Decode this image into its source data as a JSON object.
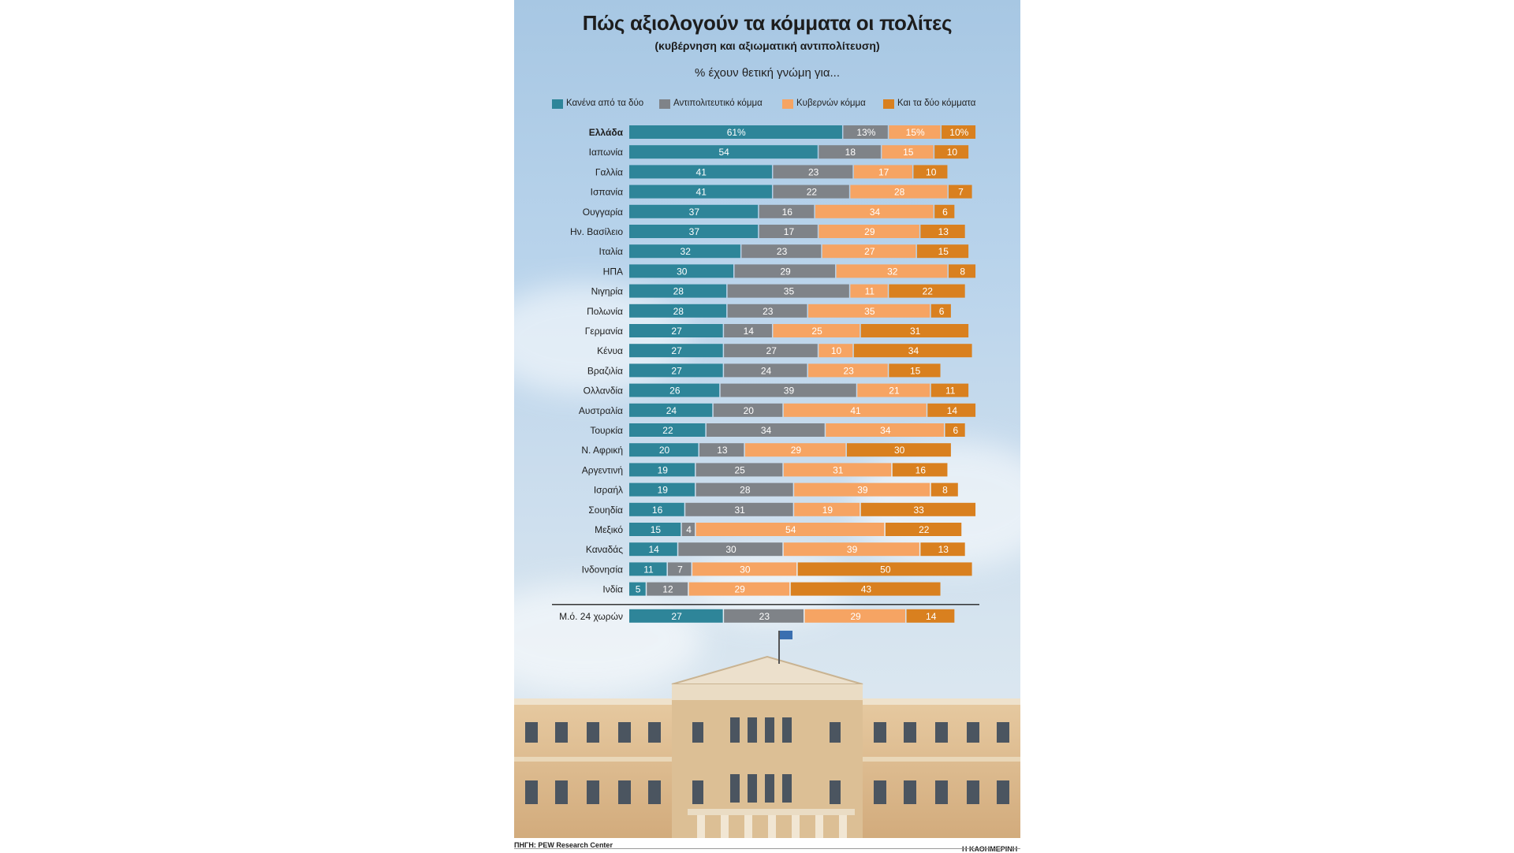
{
  "title": "Πώς αξιολογούν τα κόμματα οι πολίτες",
  "subtitle": "(κυβέρνηση και αξιωματική αντιπολίτευση)",
  "caption": "% έχουν θετική γνώμη για...",
  "source": "ΠΗΓΗ: PEW Research Center",
  "brand": "Η ΚΑΘΗΜΕΡΙΝΗ",
  "colors": {
    "neither": "#2e8599",
    "opposition": "#7f8388",
    "government": "#f6a463",
    "both": "#d9801f"
  },
  "chart_data": {
    "type": "bar",
    "orientation": "horizontal",
    "stacked": true,
    "categories": [
      "Ελλάδα",
      "Ιαπωνία",
      "Γαλλία",
      "Ισπανία",
      "Ουγγαρία",
      "Ην. Βασίλειο",
      "Ιταλία",
      "ΗΠΑ",
      "Νιγηρία",
      "Πολωνία",
      "Γερμανία",
      "Κένυα",
      "Βραζιλία",
      "Ολλανδία",
      "Αυστραλία",
      "Τουρκία",
      "Ν. Αφρική",
      "Αργεντινή",
      "Ισραήλ",
      "Σουηδία",
      "Μεξικό",
      "Καναδάς",
      "Ινδονησία",
      "Ινδία"
    ],
    "highlight_category": "Ελλάδα",
    "series": [
      {
        "name": "Κανένα από τα δύο",
        "color": "#2e8599",
        "values": [
          61,
          54,
          41,
          41,
          37,
          37,
          32,
          30,
          28,
          28,
          27,
          27,
          27,
          26,
          24,
          22,
          20,
          19,
          19,
          16,
          15,
          14,
          11,
          5
        ]
      },
      {
        "name": "Αντιπολιτευτικό κόμμα",
        "color": "#7f8388",
        "values": [
          13,
          18,
          23,
          22,
          16,
          17,
          23,
          29,
          35,
          23,
          14,
          27,
          24,
          39,
          20,
          34,
          13,
          25,
          28,
          31,
          4,
          30,
          7,
          12
        ]
      },
      {
        "name": "Κυβερνών κόμμα",
        "color": "#f6a463",
        "values": [
          15,
          15,
          17,
          28,
          34,
          29,
          27,
          32,
          11,
          35,
          25,
          10,
          23,
          21,
          41,
          34,
          29,
          31,
          39,
          19,
          54,
          39,
          30,
          29
        ]
      },
      {
        "name": "Και τα δύο κόμματα",
        "color": "#d9801f",
        "values": [
          10,
          10,
          10,
          7,
          6,
          13,
          15,
          8,
          22,
          6,
          31,
          34,
          15,
          11,
          14,
          6,
          30,
          16,
          8,
          33,
          22,
          13,
          50,
          43
        ]
      }
    ],
    "first_row_label_suffix": "%",
    "average": {
      "label": "Μ.ό. 24 χωρών",
      "values": [
        27,
        23,
        29,
        14
      ]
    },
    "legend_position": "top",
    "grid": false,
    "xlim": [
      0,
      100
    ]
  }
}
